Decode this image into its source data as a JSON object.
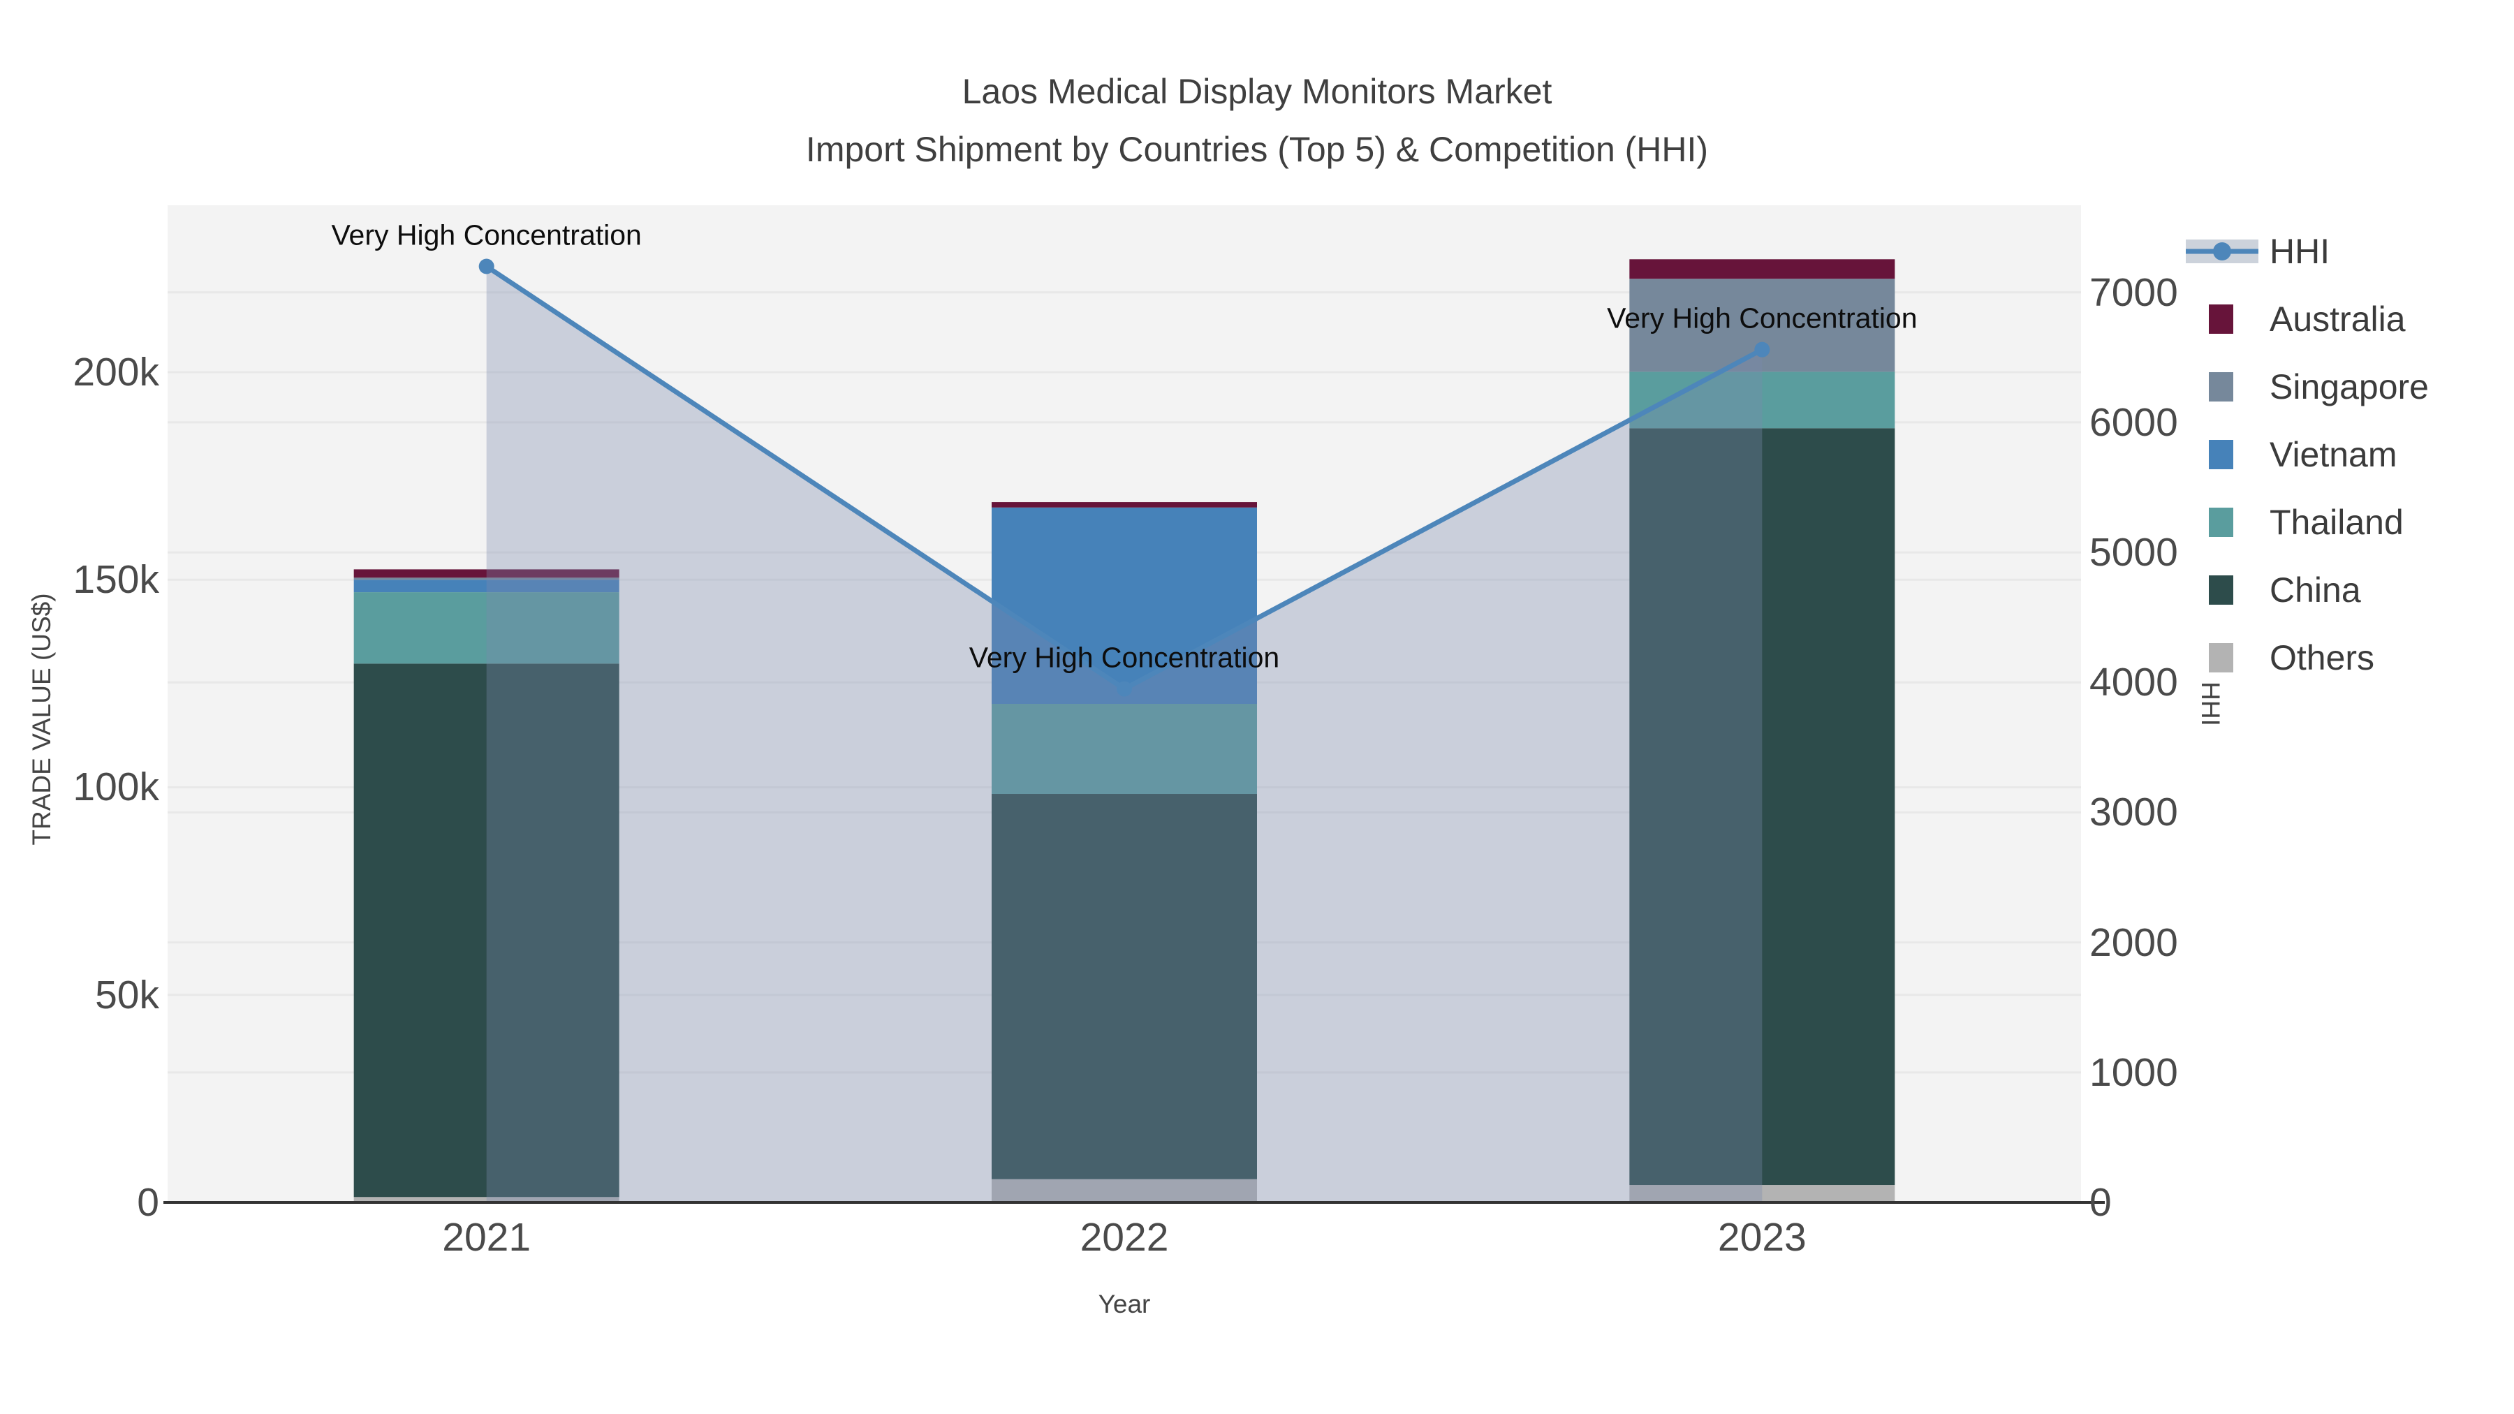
{
  "title": {
    "line1": "Laos Medical Display Monitors Market",
    "line2": "Import Shipment by Countries (Top 5) & Competition (HHI)"
  },
  "axis_titles": {
    "y_left": "TRADE VALUE (US$)",
    "x": "Year",
    "y_right": "HHI"
  },
  "colors": {
    "plot_bg": "#f3f3f3",
    "gridline": "#e8e8e8",
    "axis_line": "#333333",
    "hhi_line": "#4d86ba",
    "hhi_fill": "rgba(122,138,172,0.34)",
    "tick_text": "#4a4a4a",
    "title_text": "#3f3f3f"
  },
  "legend": {
    "items": [
      {
        "label": "HHI",
        "type": "line",
        "color": "#4d86ba"
      },
      {
        "label": "Australia",
        "type": "swatch",
        "color": "#67143a"
      },
      {
        "label": "Singapore",
        "type": "swatch",
        "color": "#76889b"
      },
      {
        "label": "Vietnam",
        "type": "swatch",
        "color": "#4682b9"
      },
      {
        "label": "Thailand",
        "type": "swatch",
        "color": "#5a9d9e"
      },
      {
        "label": "China",
        "type": "swatch",
        "color": "#2d4c4b"
      },
      {
        "label": "Others",
        "type": "swatch",
        "color": "#b3b3b3"
      }
    ]
  },
  "chart_data": {
    "type": "stacked-bar+line",
    "title": "Laos Medical Display Monitors Market — Import Shipment by Countries (Top 5) & Competition (HHI)",
    "categories": [
      "2021",
      "2022",
      "2023"
    ],
    "series": [
      {
        "name": "Others",
        "type": "bar",
        "color": "#b3b3b3",
        "values": [
          1300,
          5600,
          4200
        ]
      },
      {
        "name": "China",
        "type": "bar",
        "color": "#2d4c4b",
        "values": [
          128500,
          92800,
          182300
        ]
      },
      {
        "name": "Thailand",
        "type": "bar",
        "color": "#5a9d9e",
        "values": [
          17200,
          21700,
          13600
        ]
      },
      {
        "name": "Vietnam",
        "type": "bar",
        "color": "#4682b9",
        "values": [
          3000,
          47300,
          0
        ]
      },
      {
        "name": "Singapore",
        "type": "bar",
        "color": "#76889b",
        "values": [
          500,
          0,
          22400
        ]
      },
      {
        "name": "Australia",
        "type": "bar",
        "color": "#67143a",
        "values": [
          2000,
          1300,
          4700
        ]
      }
    ],
    "bar_totals": [
      152500,
      168700,
      227200
    ],
    "line_series": {
      "name": "HHI",
      "values": [
        7200,
        3950,
        6560
      ],
      "color": "#4d86ba",
      "fill": "rgba(122,138,172,0.34)",
      "axis": "right"
    },
    "annotations": [
      {
        "text": "Very High Concentration",
        "category": "2021"
      },
      {
        "text": "Very High Concentration",
        "category": "2022"
      },
      {
        "text": "Very High Concentration",
        "category": "2023"
      }
    ],
    "axes": {
      "x": {
        "title": "Year",
        "tick_labels": [
          "2021",
          "2022",
          "2023"
        ]
      },
      "left": {
        "title": "TRADE VALUE (US$)",
        "range": [
          0,
          240200
        ],
        "grid": true,
        "ticks": [
          {
            "v": 0,
            "label": "0"
          },
          {
            "v": 50000,
            "label": "50k"
          },
          {
            "v": 100000,
            "label": "100k"
          },
          {
            "v": 150000,
            "label": "150k"
          },
          {
            "v": 200000,
            "label": "200k"
          }
        ]
      },
      "right": {
        "title": "HHI",
        "range": [
          0,
          7670
        ],
        "grid": true,
        "ticks": [
          {
            "v": 0,
            "label": "0"
          },
          {
            "v": 1000,
            "label": "1000"
          },
          {
            "v": 2000,
            "label": "2000"
          },
          {
            "v": 3000,
            "label": "3000"
          },
          {
            "v": 4000,
            "label": "4000"
          },
          {
            "v": 5000,
            "label": "5000"
          },
          {
            "v": 6000,
            "label": "6000"
          },
          {
            "v": 7000,
            "label": "7000"
          }
        ]
      }
    },
    "legend_position": "right",
    "stack_order_bottom_to_top": [
      "Others",
      "China",
      "Thailand",
      "Vietnam",
      "Singapore",
      "Australia"
    ]
  }
}
